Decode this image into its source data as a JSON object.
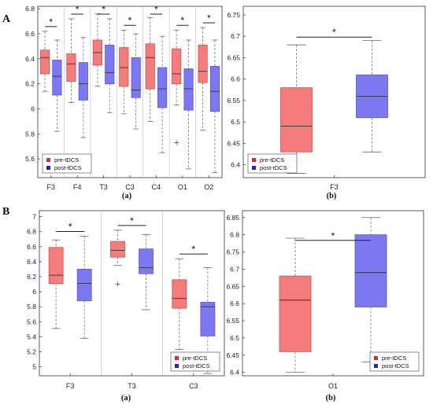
{
  "colors": {
    "pre": "#f47c7c",
    "post": "#7b78f2",
    "pre_marker": "#ee2222",
    "post_marker": "#2020dd"
  },
  "sections": [
    "A",
    "B"
  ],
  "chart_data": [
    {
      "type": "box",
      "section": "A",
      "caption": "(a)",
      "categories": [
        "F3",
        "F4",
        "T3",
        "C3",
        "C4",
        "O1",
        "O2"
      ],
      "ylim": [
        5.45,
        6.82
      ],
      "yticks": [
        5.6,
        5.8,
        6,
        6.2,
        6.4,
        6.6,
        6.8
      ],
      "vseparators": true,
      "legend": {
        "position": "bottom-left",
        "entries": [
          "pre-tDCS",
          "post-tDCS"
        ]
      },
      "series": [
        {
          "name": "pre-tDCS",
          "boxes": [
            {
              "whislo": 6.14,
              "q1": 6.28,
              "med": 6.41,
              "q3": 6.47,
              "whishi": 6.62,
              "outliers": []
            },
            {
              "whislo": 6.05,
              "q1": 6.22,
              "med": 6.36,
              "q3": 6.44,
              "whishi": 6.72,
              "outliers": []
            },
            {
              "whislo": 6.18,
              "q1": 6.35,
              "med": 6.45,
              "q3": 6.55,
              "whishi": 6.76,
              "outliers": []
            },
            {
              "whislo": 5.96,
              "q1": 6.18,
              "med": 6.33,
              "q3": 6.49,
              "whishi": 6.63,
              "outliers": []
            },
            {
              "whislo": 5.9,
              "q1": 6.16,
              "med": 6.41,
              "q3": 6.52,
              "whishi": 6.73,
              "outliers": []
            },
            {
              "whislo": 6.03,
              "q1": 6.2,
              "med": 6.28,
              "q3": 6.48,
              "whishi": 6.63,
              "outliers": [
                5.73
              ]
            },
            {
              "whislo": 5.83,
              "q1": 6.21,
              "med": 6.3,
              "q3": 6.51,
              "whishi": 6.65,
              "outliers": []
            }
          ]
        },
        {
          "name": "post-tDCS",
          "boxes": [
            {
              "whislo": 5.82,
              "q1": 6.11,
              "med": 6.26,
              "q3": 6.39,
              "whishi": 6.55,
              "outliers": []
            },
            {
              "whislo": 5.77,
              "q1": 6.07,
              "med": 6.2,
              "q3": 6.37,
              "whishi": 6.57,
              "outliers": []
            },
            {
              "whislo": 5.97,
              "q1": 6.2,
              "med": 6.29,
              "q3": 6.51,
              "whishi": 6.72,
              "outliers": []
            },
            {
              "whislo": 5.84,
              "q1": 6.09,
              "med": 6.15,
              "q3": 6.41,
              "whishi": 6.6,
              "outliers": []
            },
            {
              "whislo": 5.65,
              "q1": 6.01,
              "med": 6.16,
              "q3": 6.33,
              "whishi": 6.58,
              "outliers": []
            },
            {
              "whislo": 5.52,
              "q1": 5.99,
              "med": 6.16,
              "q3": 6.32,
              "whishi": 6.55,
              "outliers": []
            },
            {
              "whislo": 5.49,
              "q1": 5.98,
              "med": 6.14,
              "q3": 6.34,
              "whishi": 6.55,
              "outliers": []
            }
          ]
        }
      ],
      "significance": [
        {
          "category": "F3",
          "label": "*"
        },
        {
          "category": "F4",
          "label": "*"
        },
        {
          "category": "T3",
          "label": "*"
        },
        {
          "category": "C3",
          "label": "*"
        },
        {
          "category": "C4",
          "label": "*"
        },
        {
          "category": "O1",
          "label": "*"
        },
        {
          "category": "O2",
          "label": "*"
        }
      ]
    },
    {
      "type": "box",
      "section": "A",
      "caption": "(b)",
      "categories": [
        "F3"
      ],
      "ylim": [
        6.37,
        6.77
      ],
      "yticks": [
        6.4,
        6.45,
        6.5,
        6.55,
        6.6,
        6.65,
        6.7,
        6.75
      ],
      "legend": {
        "position": "bottom-left",
        "entries": [
          "pre-tDCS",
          "post-tDCS"
        ]
      },
      "series": [
        {
          "name": "pre-tDCS",
          "boxes": [
            {
              "whislo": 6.38,
              "q1": 6.43,
              "med": 6.49,
              "q3": 6.58,
              "whishi": 6.68,
              "outliers": []
            }
          ]
        },
        {
          "name": "post-tDCS",
          "boxes": [
            {
              "whislo": 6.43,
              "q1": 6.51,
              "med": 6.56,
              "q3": 6.61,
              "whishi": 6.69,
              "outliers": []
            }
          ]
        }
      ],
      "significance": [
        {
          "category": "F3",
          "label": "*"
        }
      ]
    },
    {
      "type": "box",
      "section": "B",
      "caption": "(a)",
      "categories": [
        "F3",
        "T3",
        "C3"
      ],
      "ylim": [
        4.88,
        7.08
      ],
      "yticks": [
        5,
        5.2,
        5.4,
        5.6,
        5.8,
        6,
        6.2,
        6.4,
        6.6,
        6.8,
        7
      ],
      "vseparators": true,
      "legend": {
        "position": "bottom-right",
        "entries": [
          "pre-tDCS",
          "post-tDCS"
        ]
      },
      "series": [
        {
          "name": "pre-tDCS",
          "boxes": [
            {
              "whislo": 5.51,
              "q1": 6.11,
              "med": 6.22,
              "q3": 6.59,
              "whishi": 6.69,
              "outliers": []
            },
            {
              "whislo": 6.35,
              "q1": 6.46,
              "med": 6.55,
              "q3": 6.67,
              "whishi": 6.82,
              "outliers": [
                6.1
              ]
            },
            {
              "whislo": 5.23,
              "q1": 5.78,
              "med": 5.91,
              "q3": 6.16,
              "whishi": 6.44,
              "outliers": []
            }
          ]
        },
        {
          "name": "post-tDCS",
          "boxes": [
            {
              "whislo": 5.38,
              "q1": 5.88,
              "med": 6.11,
              "q3": 6.3,
              "whishi": 6.74,
              "outliers": []
            },
            {
              "whislo": 5.76,
              "q1": 6.24,
              "med": 6.32,
              "q3": 6.57,
              "whishi": 6.76,
              "outliers": []
            },
            {
              "whislo": 4.91,
              "q1": 5.41,
              "med": 5.8,
              "q3": 5.86,
              "whishi": 6.32,
              "outliers": []
            }
          ]
        }
      ],
      "significance": [
        {
          "category": "F3",
          "label": "*"
        },
        {
          "category": "T3",
          "label": "*"
        },
        {
          "category": "C3",
          "label": "*"
        }
      ]
    },
    {
      "type": "box",
      "section": "B",
      "caption": "(b)",
      "categories": [
        "O1"
      ],
      "ylim": [
        6.39,
        6.87
      ],
      "yticks": [
        6.4,
        6.45,
        6.5,
        6.55,
        6.6,
        6.65,
        6.7,
        6.75,
        6.8,
        6.85
      ],
      "legend": {
        "position": "bottom-right",
        "entries": [
          "pre-tDCS",
          "post-tDCS"
        ]
      },
      "series": [
        {
          "name": "pre-tDCS",
          "boxes": [
            {
              "whislo": 6.4,
              "q1": 6.46,
              "med": 6.61,
              "q3": 6.68,
              "whishi": 6.79,
              "outliers": []
            }
          ]
        },
        {
          "name": "post-tDCS",
          "boxes": [
            {
              "whislo": 6.43,
              "q1": 6.59,
              "med": 6.69,
              "q3": 6.8,
              "whishi": 6.85,
              "outliers": []
            }
          ]
        }
      ],
      "significance": [
        {
          "category": "O1",
          "label": "*"
        }
      ]
    }
  ]
}
